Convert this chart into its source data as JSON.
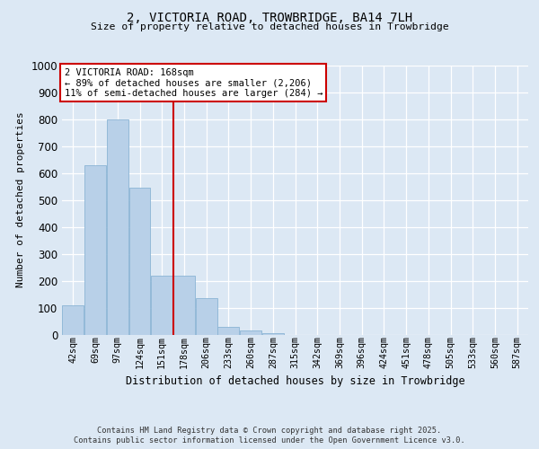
{
  "title1": "2, VICTORIA ROAD, TROWBRIDGE, BA14 7LH",
  "title2": "Size of property relative to detached houses in Trowbridge",
  "xlabel": "Distribution of detached houses by size in Trowbridge",
  "ylabel": "Number of detached properties",
  "bar_labels": [
    "42sqm",
    "69sqm",
    "97sqm",
    "124sqm",
    "151sqm",
    "178sqm",
    "206sqm",
    "233sqm",
    "260sqm",
    "287sqm",
    "315sqm",
    "342sqm",
    "369sqm",
    "396sqm",
    "424sqm",
    "451sqm",
    "478sqm",
    "505sqm",
    "533sqm",
    "560sqm",
    "587sqm"
  ],
  "bar_values": [
    110,
    630,
    800,
    545,
    220,
    220,
    135,
    30,
    15,
    5,
    0,
    0,
    0,
    0,
    0,
    0,
    0,
    0,
    0,
    0,
    0
  ],
  "bar_color": "#b8d0e8",
  "bar_edge_color": "#8ab4d4",
  "property_line_x": 5,
  "annotation_title": "2 VICTORIA ROAD: 168sqm",
  "annotation_line1": "← 89% of detached houses are smaller (2,206)",
  "annotation_line2": "11% of semi-detached houses are larger (284) →",
  "annotation_box_color": "#ffffff",
  "annotation_box_edge": "#cc0000",
  "vline_color": "#cc0000",
  "ylim": [
    0,
    1000
  ],
  "yticks": [
    0,
    100,
    200,
    300,
    400,
    500,
    600,
    700,
    800,
    900,
    1000
  ],
  "footer1": "Contains HM Land Registry data © Crown copyright and database right 2025.",
  "footer2": "Contains public sector information licensed under the Open Government Licence v3.0.",
  "bg_color": "#dce8f4",
  "plot_bg_color": "#dce8f4"
}
